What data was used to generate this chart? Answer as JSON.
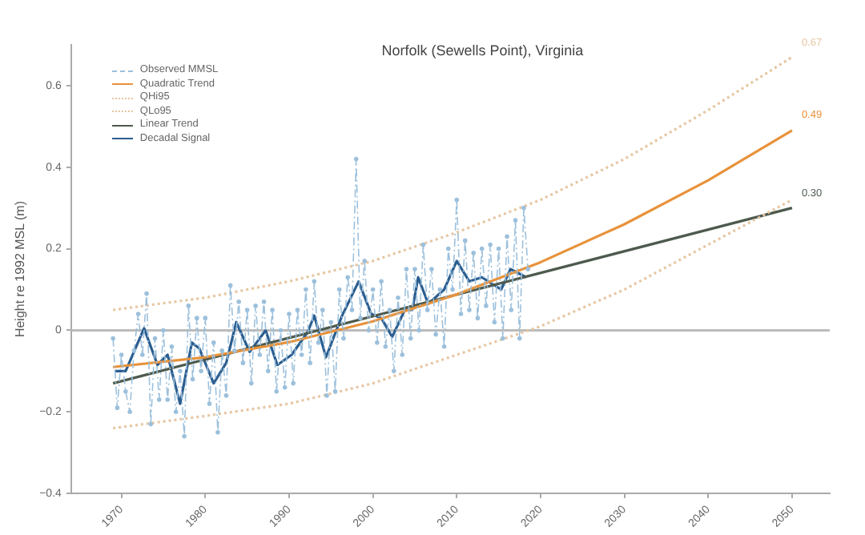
{
  "chart_data": {
    "type": "line",
    "title": "Norfolk (Sewells Point), Virginia",
    "ylabel": "Height re 1992 MSL (m)",
    "xlim": [
      1964,
      2054.5
    ],
    "xticks": [
      1970,
      1980,
      1990,
      2000,
      2010,
      2020,
      2030,
      2040,
      2050
    ],
    "ylim": [
      -0.4,
      0.7
    ],
    "yticks": [
      {
        "value": -0.4,
        "label": "−0.4"
      },
      {
        "value": -0.2,
        "label": "−0.2"
      },
      0,
      0.2,
      0.4,
      0.6
    ],
    "grid": false,
    "legend": "top left",
    "marker": "none",
    "ref_lines": [
      {
        "axis": "y",
        "value": 0,
        "color": "#bbbbbb"
      }
    ],
    "series": [
      {
        "name": "Observed MMSL",
        "color": "#9cc0dc",
        "line_style": "dashed",
        "marker": "circle",
        "x": [
          1969,
          1969.5,
          1970,
          1970.5,
          1971,
          1971.5,
          1972,
          1972.5,
          1973,
          1973.5,
          1974,
          1974.5,
          1975,
          1975.5,
          1976,
          1976.5,
          1977,
          1977.5,
          1978,
          1978.5,
          1979,
          1979.5,
          1980,
          1980.5,
          1981,
          1981.5,
          1982,
          1982.5,
          1983,
          1983.5,
          1984,
          1984.5,
          1985,
          1985.5,
          1986,
          1986.5,
          1987,
          1987.5,
          1988,
          1988.5,
          1989,
          1989.5,
          1990,
          1990.5,
          1991,
          1991.5,
          1992,
          1992.5,
          1993,
          1993.5,
          1994,
          1994.5,
          1995,
          1995.5,
          1996,
          1996.5,
          1997,
          1997.5,
          1998,
          1998.5,
          1999,
          1999.5,
          2000,
          2000.5,
          2001,
          2001.5,
          2002,
          2002.5,
          2003,
          2003.5,
          2004,
          2004.5,
          2005,
          2005.5,
          2006,
          2006.5,
          2007,
          2007.5,
          2008,
          2008.5,
          2009,
          2009.5,
          2010,
          2010.5,
          2011,
          2011.5,
          2012,
          2012.5,
          2013,
          2013.5,
          2014,
          2014.5,
          2015,
          2015.5,
          2016,
          2016.5,
          2017,
          2017.5,
          2018,
          2018.5
        ],
        "values": [
          -0.02,
          -0.19,
          -0.06,
          -0.15,
          -0.2,
          -0.05,
          0.04,
          -0.06,
          0.09,
          -0.23,
          -0.02,
          -0.17,
          0.0,
          -0.17,
          -0.04,
          -0.2,
          -0.1,
          -0.26,
          0.06,
          -0.12,
          0.03,
          -0.1,
          0.03,
          -0.18,
          -0.03,
          -0.25,
          -0.05,
          -0.16,
          0.11,
          -0.05,
          0.07,
          -0.08,
          0.05,
          -0.13,
          0.06,
          -0.06,
          0.07,
          -0.1,
          0.05,
          -0.15,
          0.0,
          -0.14,
          0.04,
          -0.13,
          0.05,
          -0.06,
          0.1,
          -0.08,
          0.12,
          -0.03,
          0.05,
          -0.16,
          0.02,
          -0.15,
          0.1,
          -0.02,
          0.13,
          0.05,
          0.42,
          0.03,
          0.17,
          0.0,
          0.1,
          -0.03,
          0.12,
          -0.04,
          0.05,
          -0.1,
          0.08,
          -0.06,
          0.15,
          -0.02,
          0.15,
          0.0,
          0.21,
          0.05,
          0.15,
          -0.01,
          0.1,
          -0.04,
          0.2,
          0.1,
          0.32,
          0.04,
          0.22,
          0.05,
          0.19,
          0.03,
          0.2,
          0.06,
          0.21,
          0.02,
          0.2,
          -0.02,
          0.23,
          0.05,
          0.27,
          -0.02,
          0.3,
          0.15
        ]
      },
      {
        "name": "Quadratic Trend",
        "color": "#e8923a",
        "line_style": "solid",
        "x": [
          1969,
          1980,
          1990,
          2000,
          2010,
          2020,
          2030,
          2040,
          2050
        ],
        "values": [
          -0.09,
          -0.066,
          -0.029,
          0.022,
          0.088,
          0.167,
          0.26,
          0.368,
          0.49
        ],
        "value_labels": [
          null,
          null,
          null,
          null,
          null,
          null,
          null,
          null,
          "0.49"
        ]
      },
      {
        "name": "QHi95",
        "color": "#e6c6a2",
        "line_style": "dotted",
        "x": [
          1969,
          1980,
          1990,
          2000,
          2010,
          2020,
          2030,
          2040,
          2050
        ],
        "values": [
          0.05,
          0.08,
          0.12,
          0.17,
          0.24,
          0.32,
          0.42,
          0.54,
          0.67
        ],
        "value_labels": [
          null,
          null,
          null,
          null,
          null,
          null,
          null,
          null,
          "0.67"
        ]
      },
      {
        "name": "QLo95",
        "color": "#e6c6a2",
        "line_style": "dotted",
        "x": [
          1969,
          1980,
          1990,
          2000,
          2010,
          2020,
          2030,
          2040,
          2050
        ],
        "values": [
          -0.24,
          -0.21,
          -0.18,
          -0.13,
          -0.06,
          0.01,
          0.1,
          0.21,
          0.32
        ]
      },
      {
        "name": "Linear Trend",
        "color": "#4d5a4d",
        "line_style": "solid",
        "x": [
          1969,
          2050
        ],
        "values": [
          -0.13,
          0.3
        ],
        "value_labels": [
          null,
          "0.30"
        ]
      },
      {
        "name": "Decadal Signal",
        "color": "#2a5d8f",
        "line_style": "solid",
        "x": [
          1969.2,
          1970.5,
          1972.7,
          1974.3,
          1975.5,
          1977,
          1978.4,
          1979.3,
          1981,
          1982.5,
          1983.7,
          1985.3,
          1987.2,
          1988.6,
          1990.3,
          1992.2,
          1993,
          1994.4,
          1996.3,
          1998.3,
          1999.8,
          2001,
          2002.3,
          2003.8,
          2004.7,
          2005.4,
          2006.6,
          2008.5,
          2010,
          2011.5,
          2013,
          2015.3,
          2016.4,
          2018.3
        ],
        "values": [
          -0.1,
          -0.1,
          0.005,
          -0.085,
          -0.06,
          -0.18,
          -0.03,
          -0.045,
          -0.13,
          -0.08,
          0.02,
          -0.053,
          0.0,
          -0.085,
          -0.06,
          -0.005,
          0.036,
          -0.066,
          0.035,
          0.12,
          0.04,
          0.03,
          -0.016,
          0.05,
          0.05,
          0.13,
          0.065,
          0.1,
          0.17,
          0.12,
          0.13,
          0.1,
          0.15,
          0.13
        ]
      }
    ]
  }
}
